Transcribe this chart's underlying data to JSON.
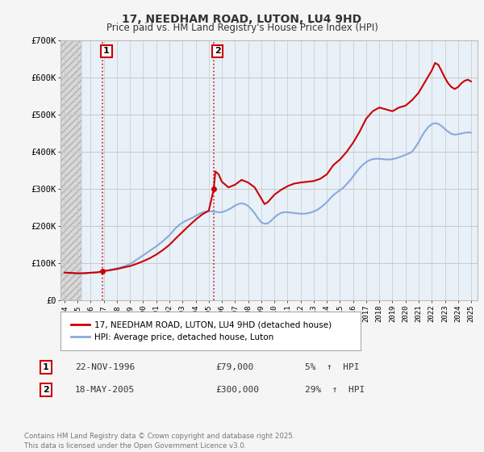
{
  "title": "17, NEEDHAM ROAD, LUTON, LU4 9HD",
  "subtitle": "Price paid vs. HM Land Registry's House Price Index (HPI)",
  "bg_color": "#f5f5f5",
  "plot_bg_color": "#e8f0f8",
  "hatch_bg_color": "#e0e0e0",
  "grid_color": "#c8c8c8",
  "red_color": "#cc0000",
  "blue_color": "#88aadd",
  "ylim": [
    0,
    700000
  ],
  "yticks": [
    0,
    100000,
    200000,
    300000,
    400000,
    500000,
    600000,
    700000
  ],
  "ytick_labels": [
    "£0",
    "£100K",
    "£200K",
    "£300K",
    "£400K",
    "£500K",
    "£600K",
    "£700K"
  ],
  "xlim_start": 1993.7,
  "xlim_end": 2025.5,
  "hatch_end": 1995.3,
  "xticks": [
    1994,
    1995,
    1996,
    1997,
    1998,
    1999,
    2000,
    2001,
    2002,
    2003,
    2004,
    2005,
    2006,
    2007,
    2008,
    2009,
    2010,
    2011,
    2012,
    2013,
    2014,
    2015,
    2016,
    2017,
    2018,
    2019,
    2020,
    2021,
    2022,
    2023,
    2024,
    2025
  ],
  "legend_label_red": "17, NEEDHAM ROAD, LUTON, LU4 9HD (detached house)",
  "legend_label_blue": "HPI: Average price, detached house, Luton",
  "footer": "Contains HM Land Registry data © Crown copyright and database right 2025.\nThis data is licensed under the Open Government Licence v3.0.",
  "transactions": [
    {
      "label": "1",
      "date": "22-NOV-1996",
      "price": 79000,
      "pct": "5%",
      "direction": "↑",
      "x": 1996.9
    },
    {
      "label": "2",
      "date": "18-MAY-2005",
      "price": 300000,
      "pct": "29%",
      "direction": "↑",
      "x": 2005.38
    }
  ],
  "hpi_data": [
    [
      1994.0,
      75000
    ],
    [
      1994.25,
      74500
    ],
    [
      1994.5,
      74000
    ],
    [
      1994.75,
      74200
    ],
    [
      1995.0,
      73500
    ],
    [
      1995.25,
      73000
    ],
    [
      1995.5,
      73500
    ],
    [
      1995.75,
      74000
    ],
    [
      1996.0,
      75000
    ],
    [
      1996.25,
      75500
    ],
    [
      1996.5,
      76000
    ],
    [
      1996.75,
      77000
    ],
    [
      1997.0,
      79000
    ],
    [
      1997.25,
      81000
    ],
    [
      1997.5,
      83000
    ],
    [
      1997.75,
      85000
    ],
    [
      1998.0,
      87000
    ],
    [
      1998.25,
      89000
    ],
    [
      1998.5,
      92000
    ],
    [
      1998.75,
      95000
    ],
    [
      1999.0,
      99000
    ],
    [
      1999.25,
      104000
    ],
    [
      1999.5,
      110000
    ],
    [
      1999.75,
      116000
    ],
    [
      2000.0,
      122000
    ],
    [
      2000.25,
      128000
    ],
    [
      2000.5,
      134000
    ],
    [
      2000.75,
      140000
    ],
    [
      2001.0,
      146000
    ],
    [
      2001.25,
      153000
    ],
    [
      2001.5,
      160000
    ],
    [
      2001.75,
      168000
    ],
    [
      2002.0,
      176000
    ],
    [
      2002.25,
      186000
    ],
    [
      2002.5,
      196000
    ],
    [
      2002.75,
      204000
    ],
    [
      2003.0,
      210000
    ],
    [
      2003.25,
      215000
    ],
    [
      2003.5,
      219000
    ],
    [
      2003.75,
      223000
    ],
    [
      2004.0,
      228000
    ],
    [
      2004.25,
      233000
    ],
    [
      2004.5,
      237000
    ],
    [
      2004.75,
      240000
    ],
    [
      2005.0,
      241000
    ],
    [
      2005.25,
      240000
    ],
    [
      2005.5,
      239000
    ],
    [
      2005.75,
      238000
    ],
    [
      2006.0,
      238000
    ],
    [
      2006.25,
      241000
    ],
    [
      2006.5,
      245000
    ],
    [
      2006.75,
      250000
    ],
    [
      2007.0,
      256000
    ],
    [
      2007.25,
      260000
    ],
    [
      2007.5,
      262000
    ],
    [
      2007.75,
      260000
    ],
    [
      2008.0,
      255000
    ],
    [
      2008.25,
      246000
    ],
    [
      2008.5,
      235000
    ],
    [
      2008.75,
      222000
    ],
    [
      2009.0,
      211000
    ],
    [
      2009.25,
      207000
    ],
    [
      2009.5,
      208000
    ],
    [
      2009.75,
      215000
    ],
    [
      2010.0,
      224000
    ],
    [
      2010.25,
      231000
    ],
    [
      2010.5,
      236000
    ],
    [
      2010.75,
      238000
    ],
    [
      2011.0,
      238000
    ],
    [
      2011.25,
      237000
    ],
    [
      2011.5,
      236000
    ],
    [
      2011.75,
      235000
    ],
    [
      2012.0,
      234000
    ],
    [
      2012.25,
      234000
    ],
    [
      2012.5,
      235000
    ],
    [
      2012.75,
      237000
    ],
    [
      2013.0,
      240000
    ],
    [
      2013.25,
      244000
    ],
    [
      2013.5,
      250000
    ],
    [
      2013.75,
      257000
    ],
    [
      2014.0,
      265000
    ],
    [
      2014.25,
      275000
    ],
    [
      2014.5,
      284000
    ],
    [
      2014.75,
      291000
    ],
    [
      2015.0,
      297000
    ],
    [
      2015.25,
      304000
    ],
    [
      2015.5,
      313000
    ],
    [
      2015.75,
      323000
    ],
    [
      2016.0,
      334000
    ],
    [
      2016.25,
      346000
    ],
    [
      2016.5,
      357000
    ],
    [
      2016.75,
      366000
    ],
    [
      2017.0,
      373000
    ],
    [
      2017.25,
      378000
    ],
    [
      2017.5,
      381000
    ],
    [
      2017.75,
      382000
    ],
    [
      2018.0,
      382000
    ],
    [
      2018.25,
      381000
    ],
    [
      2018.5,
      380000
    ],
    [
      2018.75,
      380000
    ],
    [
      2019.0,
      381000
    ],
    [
      2019.25,
      383000
    ],
    [
      2019.5,
      386000
    ],
    [
      2019.75,
      389000
    ],
    [
      2020.0,
      393000
    ],
    [
      2020.25,
      396000
    ],
    [
      2020.5,
      401000
    ],
    [
      2020.75,
      413000
    ],
    [
      2021.0,
      427000
    ],
    [
      2021.25,
      443000
    ],
    [
      2021.5,
      457000
    ],
    [
      2021.75,
      468000
    ],
    [
      2022.0,
      475000
    ],
    [
      2022.25,
      478000
    ],
    [
      2022.5,
      476000
    ],
    [
      2022.75,
      470000
    ],
    [
      2023.0,
      462000
    ],
    [
      2023.25,
      455000
    ],
    [
      2023.5,
      449000
    ],
    [
      2023.75,
      447000
    ],
    [
      2024.0,
      448000
    ],
    [
      2024.25,
      450000
    ],
    [
      2024.5,
      452000
    ],
    [
      2024.75,
      453000
    ],
    [
      2025.0,
      452000
    ]
  ],
  "red_data": [
    [
      1994.0,
      75500
    ],
    [
      1994.5,
      74500
    ],
    [
      1995.0,
      73500
    ],
    [
      1995.5,
      73800
    ],
    [
      1996.0,
      75000
    ],
    [
      1996.5,
      76000
    ],
    [
      1996.9,
      79000
    ],
    [
      1997.0,
      79500
    ],
    [
      1997.5,
      82000
    ],
    [
      1998.0,
      85000
    ],
    [
      1998.5,
      89000
    ],
    [
      1999.0,
      93000
    ],
    [
      1999.5,
      99000
    ],
    [
      2000.0,
      106000
    ],
    [
      2000.5,
      114000
    ],
    [
      2001.0,
      124000
    ],
    [
      2001.5,
      136000
    ],
    [
      2002.0,
      150000
    ],
    [
      2002.5,
      168000
    ],
    [
      2003.0,
      185000
    ],
    [
      2003.5,
      202000
    ],
    [
      2004.0,
      218000
    ],
    [
      2004.5,
      232000
    ],
    [
      2005.0,
      242000
    ],
    [
      2005.38,
      300000
    ],
    [
      2005.5,
      348000
    ],
    [
      2005.75,
      340000
    ],
    [
      2006.0,
      320000
    ],
    [
      2006.5,
      305000
    ],
    [
      2007.0,
      312000
    ],
    [
      2007.5,
      325000
    ],
    [
      2008.0,
      318000
    ],
    [
      2008.5,
      305000
    ],
    [
      2009.0,
      275000
    ],
    [
      2009.25,
      260000
    ],
    [
      2009.5,
      265000
    ],
    [
      2010.0,
      285000
    ],
    [
      2010.5,
      298000
    ],
    [
      2011.0,
      308000
    ],
    [
      2011.5,
      315000
    ],
    [
      2012.0,
      318000
    ],
    [
      2012.5,
      320000
    ],
    [
      2013.0,
      322000
    ],
    [
      2013.5,
      328000
    ],
    [
      2014.0,
      340000
    ],
    [
      2014.5,
      365000
    ],
    [
      2015.0,
      380000
    ],
    [
      2015.5,
      400000
    ],
    [
      2016.0,
      425000
    ],
    [
      2016.5,
      455000
    ],
    [
      2017.0,
      490000
    ],
    [
      2017.5,
      510000
    ],
    [
      2018.0,
      520000
    ],
    [
      2018.5,
      515000
    ],
    [
      2019.0,
      510000
    ],
    [
      2019.5,
      520000
    ],
    [
      2020.0,
      525000
    ],
    [
      2020.5,
      540000
    ],
    [
      2021.0,
      560000
    ],
    [
      2021.5,
      590000
    ],
    [
      2022.0,
      620000
    ],
    [
      2022.25,
      640000
    ],
    [
      2022.5,
      635000
    ],
    [
      2022.75,
      618000
    ],
    [
      2023.0,
      600000
    ],
    [
      2023.25,
      585000
    ],
    [
      2023.5,
      575000
    ],
    [
      2023.75,
      570000
    ],
    [
      2024.0,
      575000
    ],
    [
      2024.25,
      585000
    ],
    [
      2024.5,
      592000
    ],
    [
      2024.75,
      595000
    ],
    [
      2025.0,
      590000
    ]
  ]
}
